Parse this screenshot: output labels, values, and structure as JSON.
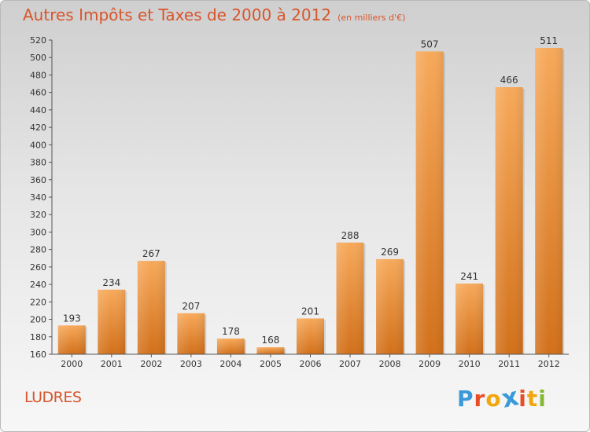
{
  "header": {
    "title": "Autres Impôts et Taxes de 2000 à 2012",
    "subtitle": "(en milliers d'€)"
  },
  "footer": {
    "city": "LUDRES",
    "logo_text": "Proxiti"
  },
  "colors": {
    "title": "#d8552b",
    "bar_top": "#f7a95a",
    "bar_bottom": "#d2701a",
    "logo": [
      "#3a9ad9",
      "#e84e26",
      "#f2a60d",
      "#3a9ad9",
      "#e84e26",
      "#f2a60d",
      "#86b833"
    ]
  },
  "chart_data": {
    "type": "bar",
    "categories": [
      "2000",
      "2001",
      "2002",
      "2003",
      "2004",
      "2005",
      "2006",
      "2007",
      "2008",
      "2009",
      "2010",
      "2011",
      "2012"
    ],
    "values": [
      193,
      234,
      267,
      207,
      178,
      168,
      201,
      288,
      269,
      507,
      241,
      466,
      511
    ],
    "title": "Autres Impôts et Taxes de 2000 à 2012",
    "subtitle": "(en milliers d'€)",
    "ylim": [
      160,
      520
    ],
    "yticks": [
      160,
      180,
      200,
      220,
      240,
      260,
      280,
      300,
      320,
      340,
      360,
      380,
      400,
      420,
      440,
      460,
      480,
      500,
      520
    ],
    "grid": false,
    "data_labels": true
  }
}
